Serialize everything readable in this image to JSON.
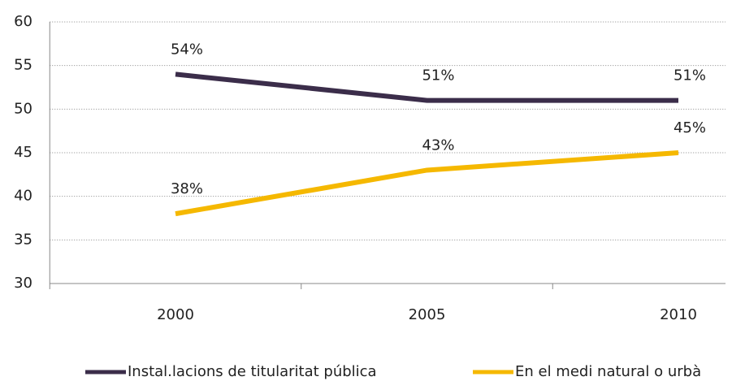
{
  "chart_data": {
    "type": "line",
    "categories": [
      "2000",
      "2005",
      "2010"
    ],
    "series": [
      {
        "name": "Instal.lacions de titularitat pública",
        "color": "#3b2d4a",
        "values": [
          54,
          51,
          51
        ],
        "value_labels": [
          "54%",
          "51%",
          "51%"
        ]
      },
      {
        "name": "En el medi natural o urbà",
        "color": "#f5b800",
        "values": [
          38,
          43,
          45
        ],
        "value_labels": [
          "38%",
          "43%",
          "45%"
        ]
      }
    ],
    "ylim": [
      30,
      60
    ],
    "yticks": [
      30,
      35,
      40,
      45,
      50,
      55,
      60
    ],
    "grid": true,
    "legend": "bottom"
  }
}
